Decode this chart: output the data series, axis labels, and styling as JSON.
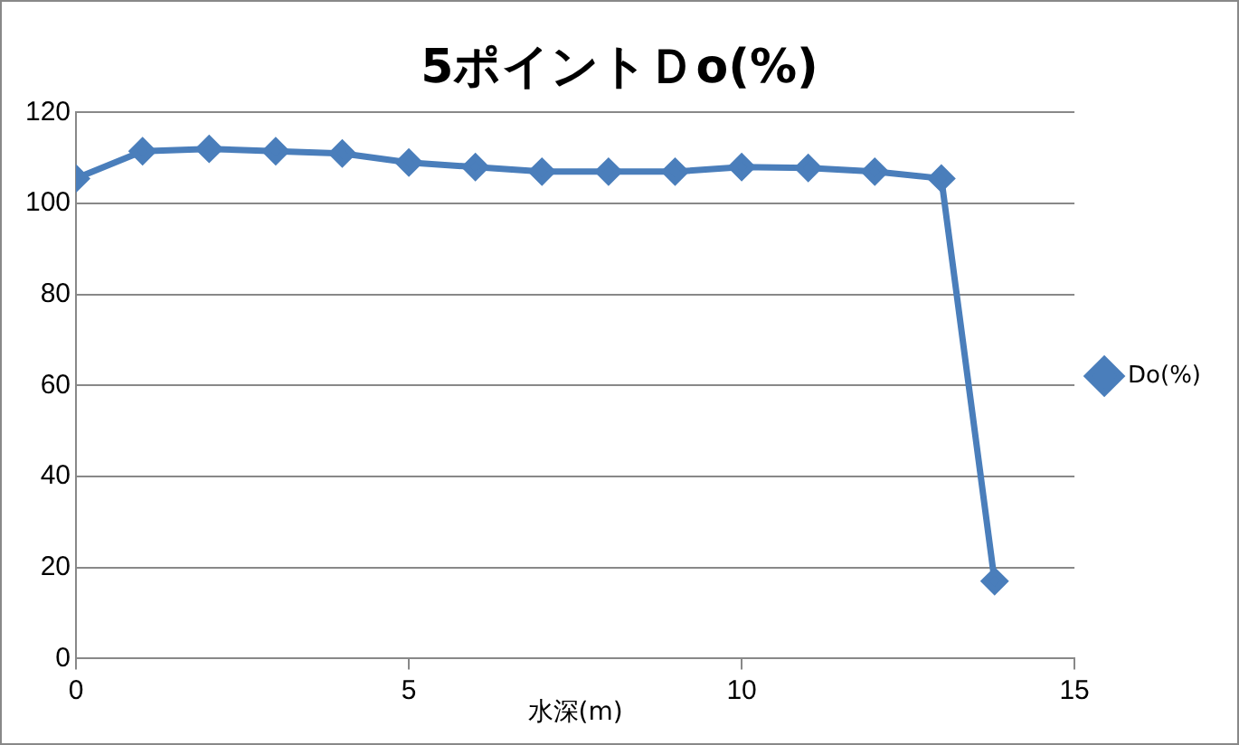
{
  "chart_data": {
    "type": "line",
    "title": "5ポイントＤo(%)",
    "xlabel": "水深(m)",
    "x": [
      0,
      1,
      2,
      3,
      4,
      5,
      6,
      7,
      8,
      9,
      10,
      11,
      12,
      13,
      13.8
    ],
    "series": [
      {
        "name": "Do(%)",
        "color": "#4a7ebb",
        "values": [
          105.5,
          111.5,
          112,
          111.5,
          111,
          109,
          108,
          107,
          107,
          107,
          108,
          107.8,
          107,
          105.5,
          17
        ]
      }
    ],
    "xlim": [
      0,
      15
    ],
    "xticks": [
      0,
      5,
      10,
      15
    ],
    "ylim": [
      0,
      120
    ],
    "yticks": [
      0,
      20,
      40,
      60,
      80,
      100,
      120
    ],
    "grid": "y",
    "legend": "right",
    "marker": "diamond",
    "line_style": "solid"
  }
}
